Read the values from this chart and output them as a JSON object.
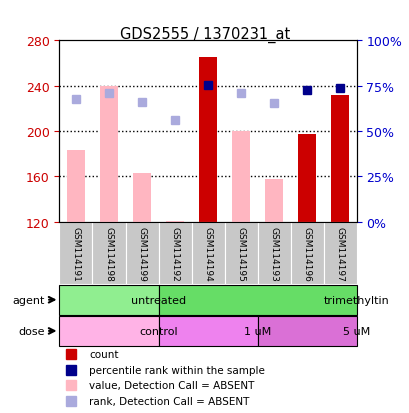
{
  "title": "GDS2555 / 1370231_at",
  "samples": [
    "GSM114191",
    "GSM114198",
    "GSM114199",
    "GSM114192",
    "GSM114194",
    "GSM114195",
    "GSM114193",
    "GSM114196",
    "GSM114197"
  ],
  "count_values": [
    null,
    null,
    null,
    null,
    265,
    null,
    null,
    197,
    232
  ],
  "count_absent": [
    183,
    240,
    163,
    121,
    null,
    200,
    158,
    null,
    null
  ],
  "rank_present": [
    null,
    null,
    null,
    null,
    241,
    null,
    null,
    236,
    238
  ],
  "rank_absent": [
    228,
    234,
    226,
    210,
    null,
    234,
    225,
    null,
    null
  ],
  "ylim": [
    120,
    280
  ],
  "yticks": [
    120,
    160,
    200,
    240,
    280
  ],
  "y2lim": [
    0,
    100
  ],
  "y2ticks": [
    0,
    25,
    50,
    75,
    100
  ],
  "y2labels": [
    "0%",
    "25%",
    "50%",
    "75%",
    "100%"
  ],
  "agent_groups": [
    {
      "label": "untreated",
      "start": 0,
      "end": 3,
      "color": "#90EE90"
    },
    {
      "label": "trimethyltin",
      "start": 3,
      "end": 9,
      "color": "#66DD66"
    }
  ],
  "dose_groups": [
    {
      "label": "control",
      "start": 0,
      "end": 3,
      "color": "#FFB3E6"
    },
    {
      "label": "1 uM",
      "start": 3,
      "end": 6,
      "color": "#EE82EE"
    },
    {
      "label": "5 uM",
      "start": 6,
      "end": 9,
      "color": "#DA70D6"
    }
  ],
  "bar_width": 0.55,
  "count_color": "#CC0000",
  "count_absent_color": "#FFB6C1",
  "rank_present_color": "#00008B",
  "rank_absent_color": "#AAAADD",
  "bg_color": "#FFFFFF",
  "left_label_color": "#CC0000",
  "right_label_color": "#0000CC",
  "sample_bg_color": "#C8C8C8",
  "legend_items": [
    {
      "color": "#CC0000",
      "label": "count"
    },
    {
      "color": "#00008B",
      "label": "percentile rank within the sample"
    },
    {
      "color": "#FFB6C1",
      "label": "value, Detection Call = ABSENT"
    },
    {
      "color": "#AAAADD",
      "label": "rank, Detection Call = ABSENT"
    }
  ]
}
